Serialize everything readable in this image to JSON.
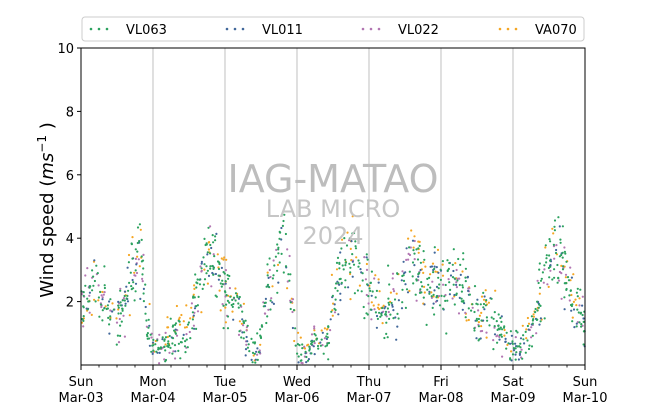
{
  "chart_data": {
    "type": "scatter",
    "ylabel": "Wind speed (ms⁻¹ )",
    "ylabel_parts": {
      "base": "Wind speed (",
      "ms": "ms",
      "exp": "−1",
      "close": " )"
    },
    "ylim": [
      0,
      10
    ],
    "xlim": [
      0,
      7
    ],
    "yticks": [
      2,
      4,
      6,
      8,
      10
    ],
    "xticks": [
      {
        "x": 0,
        "day": "Sun",
        "date": "Mar-03"
      },
      {
        "x": 1,
        "day": "Mon",
        "date": "Mar-04"
      },
      {
        "x": 2,
        "day": "Tue",
        "date": "Mar-05"
      },
      {
        "x": 3,
        "day": "Wed",
        "date": "Mar-06"
      },
      {
        "x": 4,
        "day": "Thu",
        "date": "Mar-07"
      },
      {
        "x": 5,
        "day": "Fri",
        "date": "Mar-08"
      },
      {
        "x": 6,
        "day": "Sat",
        "date": "Mar-09"
      },
      {
        "x": 7,
        "day": "Sun",
        "date": "Mar-10"
      }
    ],
    "grid": "vertical",
    "legend_position": "top",
    "watermark": {
      "line1": "IAG-MATAO",
      "line2": "LAB MICRO",
      "line3": "2024"
    },
    "daily_profile_days_x": [
      0.0,
      0.083,
      0.167,
      0.25,
      0.333,
      0.417,
      0.5,
      0.583,
      0.667,
      0.75,
      0.833,
      0.917,
      1.0,
      1.083,
      1.167,
      1.25,
      1.333,
      1.417,
      1.5,
      1.583,
      1.667,
      1.75,
      1.833,
      1.917,
      2.0,
      2.083,
      2.167,
      2.25,
      2.333,
      2.417,
      2.5,
      2.583,
      2.667,
      2.75,
      2.833,
      2.917,
      3.0,
      3.083,
      3.167,
      3.25,
      3.333,
      3.417,
      3.5,
      3.583,
      3.667,
      3.75,
      3.833,
      3.917,
      4.0,
      4.083,
      4.167,
      4.25,
      4.333,
      4.417,
      4.5,
      4.583,
      4.667,
      4.75,
      4.833,
      4.917,
      5.0,
      5.083,
      5.167,
      5.25,
      5.333,
      5.417,
      5.5,
      5.583,
      5.667,
      5.75,
      5.833,
      5.917,
      6.0,
      6.083,
      6.167,
      6.25,
      6.333,
      6.417,
      6.5,
      6.583,
      6.667,
      6.75,
      6.833,
      6.917,
      7.0
    ],
    "series": [
      {
        "name": "VL063",
        "color": "#2ca25f",
        "y": [
          1.5,
          2.4,
          2.6,
          2.1,
          1.9,
          1.6,
          1.4,
          2.0,
          2.6,
          3.4,
          3.6,
          1.3,
          0.6,
          0.4,
          0.5,
          0.9,
          1.0,
          0.6,
          1.1,
          2.1,
          3.0,
          3.4,
          3.6,
          2.8,
          2.3,
          2.0,
          1.8,
          1.2,
          0.6,
          0.2,
          1.0,
          2.4,
          3.0,
          3.5,
          3.8,
          2.3,
          0.5,
          0.3,
          0.5,
          0.8,
          0.9,
          0.7,
          1.8,
          3.0,
          3.3,
          3.2,
          3.6,
          2.9,
          2.1,
          2.0,
          1.8,
          2.0,
          2.2,
          1.7,
          2.9,
          3.3,
          3.1,
          2.8,
          2.6,
          2.4,
          2.2,
          2.3,
          2.6,
          2.8,
          2.5,
          1.9,
          1.6,
          1.5,
          1.7,
          1.4,
          1.0,
          0.8,
          0.6,
          0.5,
          0.7,
          1.1,
          1.8,
          2.7,
          3.3,
          3.9,
          3.5,
          2.6,
          2.0,
          1.7,
          1.2
        ]
      },
      {
        "name": "VL011",
        "color": "#41679a",
        "y": [
          1.4,
          2.2,
          2.4,
          2.0,
          1.8,
          1.5,
          1.3,
          1.9,
          2.5,
          3.1,
          3.2,
          1.2,
          0.5,
          0.3,
          0.4,
          0.8,
          0.9,
          0.5,
          1.0,
          2.0,
          2.8,
          3.2,
          3.3,
          2.6,
          2.2,
          1.9,
          1.7,
          1.1,
          0.5,
          0.2,
          0.9,
          2.2,
          2.8,
          3.2,
          3.5,
          2.1,
          0.4,
          0.3,
          0.4,
          0.7,
          0.8,
          0.6,
          1.7,
          2.8,
          3.1,
          3.0,
          3.3,
          2.7,
          2.0,
          1.9,
          1.7,
          1.9,
          2.1,
          1.6,
          2.7,
          3.1,
          2.9,
          2.6,
          2.4,
          2.3,
          2.1,
          2.2,
          2.4,
          2.6,
          2.3,
          1.8,
          1.5,
          1.4,
          1.6,
          1.3,
          0.9,
          0.7,
          0.5,
          0.4,
          0.6,
          1.0,
          1.7,
          2.5,
          3.1,
          3.6,
          3.3,
          2.4,
          1.9,
          1.6,
          1.1
        ]
      },
      {
        "name": "VL022",
        "color": "#b276b2",
        "y": [
          1.5,
          2.3,
          2.5,
          2.0,
          1.8,
          1.5,
          1.4,
          1.9,
          2.5,
          3.2,
          3.3,
          1.2,
          0.6,
          0.4,
          0.5,
          0.8,
          0.9,
          0.6,
          1.0,
          2.0,
          2.9,
          3.3,
          3.4,
          2.7,
          2.2,
          1.9,
          1.7,
          1.1,
          0.6,
          0.2,
          0.9,
          2.3,
          2.9,
          3.3,
          3.6,
          2.2,
          0.5,
          0.3,
          0.5,
          0.8,
          0.9,
          0.7,
          1.8,
          2.9,
          3.2,
          3.1,
          3.4,
          2.8,
          2.0,
          1.9,
          1.7,
          1.9,
          2.1,
          1.6,
          2.8,
          3.2,
          3.0,
          2.7,
          2.5,
          2.3,
          2.1,
          2.2,
          2.5,
          2.7,
          2.4,
          1.8,
          1.5,
          1.4,
          1.6,
          1.3,
          0.9,
          0.7,
          0.6,
          0.5,
          0.7,
          1.1,
          1.7,
          2.6,
          3.2,
          3.7,
          3.4,
          2.5,
          1.9,
          1.6,
          1.1
        ]
      },
      {
        "name": "VA070",
        "color": "#f5a623",
        "y": [
          1.6,
          2.5,
          2.7,
          2.2,
          2.0,
          1.7,
          1.5,
          2.1,
          2.7,
          3.3,
          3.4,
          1.5,
          0.8,
          0.6,
          0.9,
          1.3,
          1.4,
          1.0,
          1.3,
          2.2,
          3.0,
          3.4,
          3.5,
          2.9,
          2.4,
          2.1,
          1.9,
          1.4,
          0.8,
          0.4,
          1.1,
          2.5,
          3.1,
          3.5,
          3.8,
          2.4,
          0.7,
          0.5,
          0.7,
          1.0,
          1.1,
          1.0,
          2.0,
          3.2,
          3.6,
          3.7,
          3.9,
          3.2,
          2.3,
          2.2,
          2.0,
          2.1,
          2.3,
          1.9,
          3.3,
          3.7,
          3.4,
          3.0,
          2.8,
          2.6,
          2.4,
          2.5,
          2.7,
          2.9,
          2.6,
          2.0,
          1.7,
          1.6,
          1.8,
          1.6,
          1.2,
          1.0,
          0.8,
          0.7,
          0.9,
          1.3,
          1.9,
          2.8,
          3.4,
          3.8,
          3.5,
          2.7,
          2.1,
          1.8,
          1.3
        ]
      }
    ]
  }
}
